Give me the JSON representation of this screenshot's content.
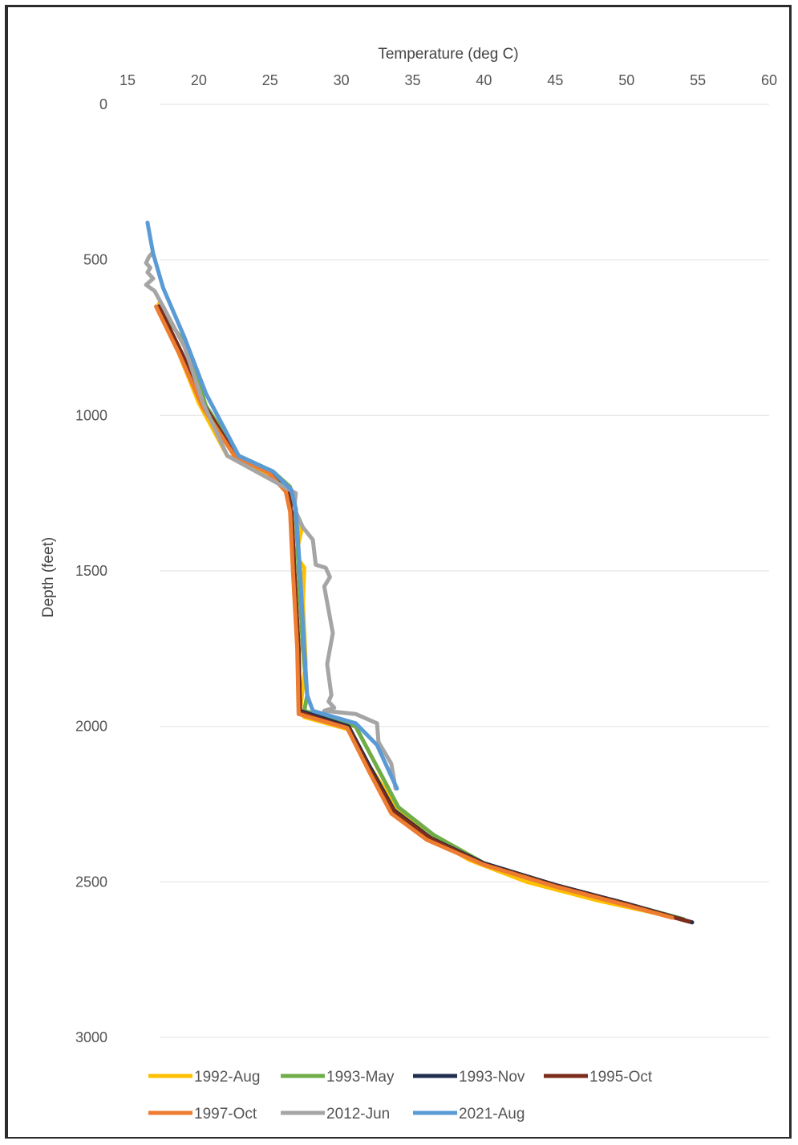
{
  "chart_data": {
    "type": "line",
    "title": "",
    "xlabel": "Temperature (deg C)",
    "ylabel": "Depth (feet)",
    "xlim": [
      15,
      60
    ],
    "ylim": [
      0,
      3000
    ],
    "y_reversed": true,
    "x_axis_position": "top",
    "x_ticks": [
      "15",
      "20",
      "25",
      "30",
      "35",
      "40",
      "45",
      "50",
      "55",
      "60"
    ],
    "y_ticks": [
      "0",
      "500",
      "1000",
      "1500",
      "2000",
      "2500",
      "3000"
    ],
    "grid": "horizontal",
    "legend_position": "bottom",
    "series": [
      {
        "name": "1992-Aug",
        "color": "#ffc000",
        "x": [
          17.2,
          18.6,
          20.0,
          22.0,
          24.5,
          26.3,
          26.7,
          27.2,
          26.8,
          27.4,
          27.3,
          27.5,
          27.1,
          27.4,
          30.5,
          32.0,
          34.0,
          36.0,
          39.0,
          43.0,
          48.0,
          53.0
        ],
        "y": [
          640,
          800,
          960,
          1130,
          1180,
          1240,
          1300,
          1370,
          1450,
          1490,
          1600,
          1800,
          1950,
          1970,
          2010,
          2130,
          2270,
          2350,
          2430,
          2500,
          2560,
          2610
        ]
      },
      {
        "name": "1993-May",
        "color": "#70ad47",
        "x": [
          17.2,
          19.2,
          20.5,
          22.8,
          25.2,
          26.4,
          26.8,
          27.0,
          27.3,
          27.6,
          27.4,
          31.0,
          32.5,
          34.0,
          36.5,
          40.0,
          45.0,
          50.0,
          54.0
        ],
        "y": [
          650,
          780,
          970,
          1130,
          1180,
          1230,
          1300,
          1500,
          1750,
          1900,
          1950,
          2000,
          2130,
          2260,
          2350,
          2440,
          2510,
          2570,
          2620
        ]
      },
      {
        "name": "1993-Nov",
        "color": "#1f2d4f",
        "x": [
          17.2,
          18.8,
          20.4,
          22.6,
          25.0,
          26.2,
          26.5,
          26.7,
          27.0,
          27.1,
          30.5,
          32.0,
          33.7,
          36.3,
          40.0,
          45.0,
          50.0,
          54.6
        ],
        "y": [
          650,
          800,
          970,
          1130,
          1180,
          1240,
          1300,
          1500,
          1750,
          1950,
          2000,
          2130,
          2270,
          2360,
          2440,
          2510,
          2570,
          2630
        ]
      },
      {
        "name": "1995-Oct",
        "color": "#7b2c1b",
        "x": [
          17.2,
          18.8,
          20.4,
          22.6,
          25.0,
          26.2,
          26.5,
          26.7,
          27.0,
          27.1,
          30.5,
          32.0,
          33.7,
          36.3,
          40.0,
          45.0,
          50.0,
          54.4
        ],
        "y": [
          650,
          800,
          970,
          1130,
          1180,
          1240,
          1300,
          1500,
          1750,
          1955,
          2005,
          2140,
          2275,
          2362,
          2443,
          2512,
          2572,
          2628
        ]
      },
      {
        "name": "1997-Oct",
        "color": "#ed7d31",
        "x": [
          17.0,
          18.6,
          20.3,
          22.5,
          24.9,
          26.1,
          26.4,
          26.6,
          26.9,
          27.0,
          30.4,
          32.0,
          33.5,
          36.0,
          40.0,
          45.0,
          50.0,
          53.2
        ],
        "y": [
          650,
          800,
          975,
          1130,
          1185,
          1245,
          1310,
          1500,
          1750,
          1960,
          2005,
          2150,
          2280,
          2365,
          2445,
          2515,
          2575,
          2615
        ]
      },
      {
        "name": "2012-Jun",
        "color": "#a5a5a5",
        "x": [
          16.7,
          16.5,
          16.3,
          16.6,
          16.4,
          16.8,
          16.3,
          16.9,
          17.5,
          19.0,
          20.3,
          22.0,
          24.0,
          26.0,
          26.8,
          26.7,
          27.3,
          28.0,
          28.2,
          28.9,
          29.2,
          28.8,
          29.4,
          29.0,
          29.3,
          29.1,
          29.5,
          28.8,
          31.0,
          32.5,
          32.6,
          33.5,
          33.8
        ],
        "y": [
          480,
          490,
          510,
          525,
          540,
          560,
          580,
          600,
          650,
          780,
          960,
          1130,
          1180,
          1230,
          1250,
          1300,
          1360,
          1400,
          1480,
          1490,
          1520,
          1550,
          1700,
          1800,
          1900,
          1920,
          1940,
          1950,
          1960,
          1990,
          2050,
          2120,
          2200
        ]
      },
      {
        "name": "2021-Aug",
        "color": "#5b9bd5",
        "x": [
          16.4,
          16.6,
          16.8,
          17.5,
          19.0,
          20.5,
          22.8,
          25.2,
          26.5,
          26.8,
          27.1,
          27.4,
          27.6,
          28.0,
          31.0,
          32.5,
          33.4,
          33.9
        ],
        "y": [
          380,
          430,
          480,
          590,
          750,
          930,
          1130,
          1180,
          1240,
          1300,
          1500,
          1750,
          1900,
          1950,
          1990,
          2060,
          2150,
          2200
        ]
      }
    ]
  }
}
